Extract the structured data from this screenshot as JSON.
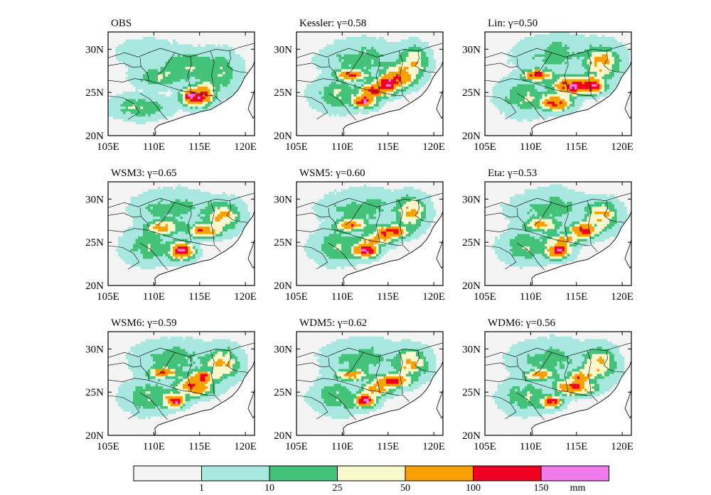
{
  "chart_data": {
    "type": "heatmap",
    "unit": "mm",
    "xlim": [
      105,
      121
    ],
    "ylim": [
      20,
      32
    ],
    "x_ticks": [
      105,
      110,
      115,
      120
    ],
    "x_tick_labels": [
      "105E",
      "110E",
      "115E",
      "120E"
    ],
    "y_ticks": [
      20,
      25,
      30
    ],
    "y_tick_labels": [
      "20N",
      "25N",
      "30N"
    ],
    "panels": [
      {
        "name": "OBS",
        "title": "OBS",
        "gamma": null,
        "centers": [
          {
            "lon": 114.3,
            "lat": 24.5,
            "amp": 150,
            "sx": 1.0,
            "sy": 0.8
          },
          {
            "lon": 115.6,
            "lat": 24.9,
            "amp": 75,
            "sx": 0.9,
            "sy": 1.1
          },
          {
            "lon": 108.5,
            "lat": 23.3,
            "amp": 26,
            "sx": 2.2,
            "sy": 1.0
          },
          {
            "lon": 110.6,
            "lat": 26.8,
            "amp": 25,
            "sx": 2.0,
            "sy": 0.9
          },
          {
            "lon": 113.8,
            "lat": 28.0,
            "amp": 22,
            "sx": 2.5,
            "sy": 1.4
          },
          {
            "lon": 117.4,
            "lat": 27.3,
            "amp": 20,
            "sx": 1.5,
            "sy": 1.8
          },
          {
            "lon": 109.3,
            "lat": 29.7,
            "amp": 9,
            "sx": 2.5,
            "sy": 1.2
          }
        ]
      },
      {
        "name": "Kessler",
        "title": "Kessler: γ=0.58",
        "gamma": 0.58,
        "centers": [
          {
            "lon": 112.4,
            "lat": 24.0,
            "amp": 160,
            "sx": 1.0,
            "sy": 0.6
          },
          {
            "lon": 111.0,
            "lat": 27.0,
            "amp": 120,
            "sx": 1.3,
            "sy": 0.5
          },
          {
            "lon": 115.0,
            "lat": 26.0,
            "amp": 120,
            "sx": 1.3,
            "sy": 0.6
          },
          {
            "lon": 113.8,
            "lat": 25.2,
            "amp": 110,
            "sx": 1.5,
            "sy": 0.6
          },
          {
            "lon": 116.2,
            "lat": 26.9,
            "amp": 80,
            "sx": 1.5,
            "sy": 1.0
          },
          {
            "lon": 117.8,
            "lat": 28.6,
            "amp": 45,
            "sx": 1.2,
            "sy": 1.4
          },
          {
            "lon": 109.5,
            "lat": 24.8,
            "amp": 24,
            "sx": 2.0,
            "sy": 1.4
          },
          {
            "lon": 112.0,
            "lat": 29.0,
            "amp": 18,
            "sx": 3.0,
            "sy": 1.5
          }
        ]
      },
      {
        "name": "Lin",
        "title": "Lin: γ=0.50",
        "gamma": 0.5,
        "centers": [
          {
            "lon": 110.8,
            "lat": 27.0,
            "amp": 130,
            "sx": 1.2,
            "sy": 0.5
          },
          {
            "lon": 114.5,
            "lat": 25.8,
            "amp": 140,
            "sx": 1.6,
            "sy": 0.8
          },
          {
            "lon": 116.8,
            "lat": 25.8,
            "amp": 150,
            "sx": 1.0,
            "sy": 0.7
          },
          {
            "lon": 112.8,
            "lat": 23.8,
            "amp": 115,
            "sx": 1.3,
            "sy": 0.7
          },
          {
            "lon": 117.8,
            "lat": 28.5,
            "amp": 60,
            "sx": 1.5,
            "sy": 1.5
          },
          {
            "lon": 109.5,
            "lat": 24.5,
            "amp": 24,
            "sx": 2.2,
            "sy": 1.5
          },
          {
            "lon": 112.5,
            "lat": 29.5,
            "amp": 18,
            "sx": 3.0,
            "sy": 1.5
          }
        ]
      },
      {
        "name": "WSM3",
        "title": "WSM3: γ=0.65",
        "gamma": 0.65,
        "centers": [
          {
            "lon": 113.0,
            "lat": 24.0,
            "amp": 160,
            "sx": 1.0,
            "sy": 0.8
          },
          {
            "lon": 115.5,
            "lat": 26.3,
            "amp": 95,
            "sx": 1.3,
            "sy": 0.6
          },
          {
            "lon": 111.2,
            "lat": 26.7,
            "amp": 65,
            "sx": 1.6,
            "sy": 0.6
          },
          {
            "lon": 117.5,
            "lat": 28.0,
            "amp": 55,
            "sx": 1.5,
            "sy": 1.3
          },
          {
            "lon": 109.5,
            "lat": 24.5,
            "amp": 24,
            "sx": 2.0,
            "sy": 1.4
          },
          {
            "lon": 112.0,
            "lat": 29.0,
            "amp": 18,
            "sx": 3.0,
            "sy": 1.5
          }
        ]
      },
      {
        "name": "WSM5",
        "title": "WSM5: γ=0.60",
        "gamma": 0.6,
        "centers": [
          {
            "lon": 112.5,
            "lat": 24.0,
            "amp": 160,
            "sx": 1.0,
            "sy": 0.6
          },
          {
            "lon": 115.2,
            "lat": 26.2,
            "amp": 130,
            "sx": 1.5,
            "sy": 0.6
          },
          {
            "lon": 111.0,
            "lat": 27.0,
            "amp": 70,
            "sx": 1.5,
            "sy": 0.6
          },
          {
            "lon": 117.5,
            "lat": 28.5,
            "amp": 60,
            "sx": 1.3,
            "sy": 1.4
          },
          {
            "lon": 113.5,
            "lat": 25.2,
            "amp": 75,
            "sx": 1.4,
            "sy": 0.6
          },
          {
            "lon": 109.5,
            "lat": 24.5,
            "amp": 24,
            "sx": 2.0,
            "sy": 1.4
          },
          {
            "lon": 112.0,
            "lat": 29.0,
            "amp": 18,
            "sx": 3.0,
            "sy": 1.5
          }
        ]
      },
      {
        "name": "Eta",
        "title": "Eta: γ=0.53",
        "gamma": 0.53,
        "centers": [
          {
            "lon": 113.0,
            "lat": 24.0,
            "amp": 155,
            "sx": 1.0,
            "sy": 0.7
          },
          {
            "lon": 115.8,
            "lat": 26.4,
            "amp": 120,
            "sx": 1.2,
            "sy": 0.7
          },
          {
            "lon": 111.2,
            "lat": 27.0,
            "amp": 70,
            "sx": 1.4,
            "sy": 0.6
          },
          {
            "lon": 117.8,
            "lat": 28.0,
            "amp": 55,
            "sx": 1.4,
            "sy": 1.3
          },
          {
            "lon": 113.5,
            "lat": 25.3,
            "amp": 60,
            "sx": 1.5,
            "sy": 0.6
          },
          {
            "lon": 109.5,
            "lat": 24.5,
            "amp": 24,
            "sx": 2.0,
            "sy": 1.4
          },
          {
            "lon": 112.0,
            "lat": 29.0,
            "amp": 18,
            "sx": 3.0,
            "sy": 1.5
          }
        ]
      },
      {
        "name": "WSM6",
        "title": "WSM6: γ=0.59",
        "gamma": 0.59,
        "centers": [
          {
            "lon": 112.2,
            "lat": 24.0,
            "amp": 160,
            "sx": 0.9,
            "sy": 0.6
          },
          {
            "lon": 114.5,
            "lat": 25.6,
            "amp": 115,
            "sx": 1.5,
            "sy": 0.8
          },
          {
            "lon": 115.3,
            "lat": 26.8,
            "amp": 105,
            "sx": 1.0,
            "sy": 0.6
          },
          {
            "lon": 111.0,
            "lat": 27.2,
            "amp": 85,
            "sx": 1.3,
            "sy": 0.5
          },
          {
            "lon": 117.5,
            "lat": 28.3,
            "amp": 55,
            "sx": 1.4,
            "sy": 1.4
          },
          {
            "lon": 109.5,
            "lat": 24.5,
            "amp": 24,
            "sx": 2.0,
            "sy": 1.4
          },
          {
            "lon": 112.0,
            "lat": 29.0,
            "amp": 18,
            "sx": 3.0,
            "sy": 1.5
          }
        ]
      },
      {
        "name": "WDM5",
        "title": "WDM5: γ=0.62",
        "gamma": 0.62,
        "centers": [
          {
            "lon": 112.5,
            "lat": 24.0,
            "amp": 160,
            "sx": 0.9,
            "sy": 0.6
          },
          {
            "lon": 115.5,
            "lat": 26.3,
            "amp": 125,
            "sx": 1.5,
            "sy": 0.6
          },
          {
            "lon": 111.0,
            "lat": 27.0,
            "amp": 75,
            "sx": 1.4,
            "sy": 0.5
          },
          {
            "lon": 117.5,
            "lat": 28.3,
            "amp": 60,
            "sx": 1.4,
            "sy": 1.3
          },
          {
            "lon": 113.8,
            "lat": 25.3,
            "amp": 80,
            "sx": 1.3,
            "sy": 0.6
          },
          {
            "lon": 109.5,
            "lat": 24.5,
            "amp": 24,
            "sx": 2.0,
            "sy": 1.4
          },
          {
            "lon": 112.0,
            "lat": 29.0,
            "amp": 18,
            "sx": 3.0,
            "sy": 1.5
          }
        ]
      },
      {
        "name": "WDM6",
        "title": "WDM6: γ=0.56",
        "gamma": 0.56,
        "centers": [
          {
            "lon": 112.3,
            "lat": 23.8,
            "amp": 160,
            "sx": 0.8,
            "sy": 0.5
          },
          {
            "lon": 114.8,
            "lat": 25.6,
            "amp": 120,
            "sx": 1.6,
            "sy": 0.7
          },
          {
            "lon": 115.5,
            "lat": 26.8,
            "amp": 80,
            "sx": 1.0,
            "sy": 0.6
          },
          {
            "lon": 111.0,
            "lat": 27.0,
            "amp": 70,
            "sx": 1.3,
            "sy": 0.5
          },
          {
            "lon": 117.5,
            "lat": 28.3,
            "amp": 55,
            "sx": 1.4,
            "sy": 1.4
          },
          {
            "lon": 109.5,
            "lat": 24.5,
            "amp": 24,
            "sx": 2.0,
            "sy": 1.4
          },
          {
            "lon": 112.0,
            "lat": 29.0,
            "amp": 18,
            "sx": 3.0,
            "sy": 1.5
          }
        ]
      }
    ],
    "colorbar": {
      "levels": [
        1,
        10,
        25,
        50,
        100,
        150
      ],
      "level_labels": [
        "1",
        "10",
        "25",
        "50",
        "100",
        "150"
      ],
      "unit_label": "mm",
      "colors": [
        "#f4f4f4",
        "#a8e8e0",
        "#44c27a",
        "#f8f8cc",
        "#f8a000",
        "#f00020",
        "#ee7aee"
      ]
    },
    "land_color": "#f4f4f4",
    "border_color": "#000000"
  }
}
